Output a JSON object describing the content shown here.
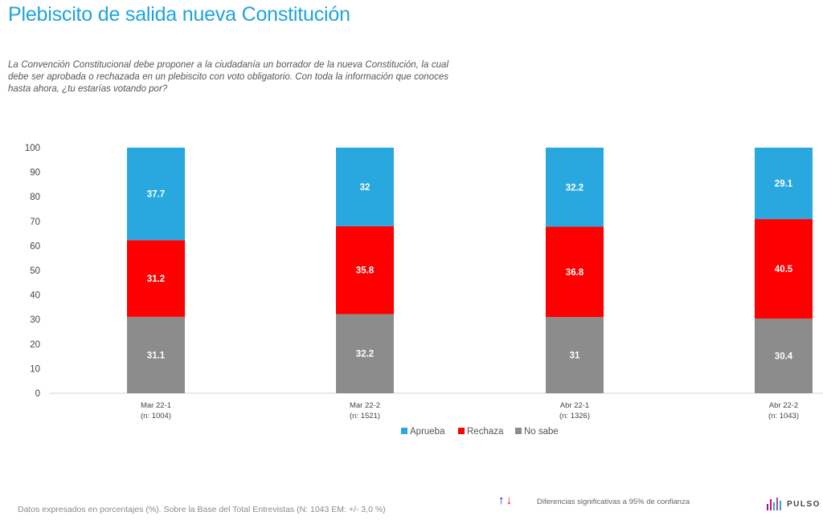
{
  "header": {
    "title": "Plebiscito de salida nueva Constitución",
    "question": "La Convención Constitucional debe proponer a la ciudadanía un borrador de la nueva Constitución, la cual debe ser aprobada o rechazada en un plebiscito con voto obligatorio. Con toda la información que conoces hasta ahora, ¿tu estarías votando por?"
  },
  "chart_data": {
    "type": "bar",
    "stacked": true,
    "title": "",
    "xlabel": "",
    "ylabel": "",
    "ylim": [
      0,
      100
    ],
    "yticks": [
      0,
      10,
      20,
      30,
      40,
      50,
      60,
      70,
      80,
      90,
      100
    ],
    "grid": false,
    "categories": [
      "Mar 22-1",
      "Mar 22-2",
      "Abr 22-1",
      "Abr 22-2"
    ],
    "sample_sizes": [
      "(n: 1004)",
      "(n: 1521)",
      "(n: 1326)",
      "(n: 1043)"
    ],
    "series": [
      {
        "name": "No sabe",
        "color": "#8c8c8c",
        "values": [
          31.1,
          32.2,
          31,
          30.4
        ]
      },
      {
        "name": "Rechaza",
        "color": "#ff0000",
        "values": [
          31.2,
          35.8,
          36.8,
          40.5
        ]
      },
      {
        "name": "Aprueba",
        "color": "#29a8e0",
        "values": [
          37.7,
          32,
          32.2,
          29.1
        ]
      }
    ],
    "legend": [
      "Aprueba",
      "Rechaza",
      "No sabe"
    ],
    "legend_position": "bottom-center"
  },
  "footer": {
    "note": "Datos expresados en porcentajes (%). Sobre la Base del Total Entrevistas (N: 1043  EM: +/- 3,0 %)",
    "arrow_up": "↑",
    "arrow_down": "↓",
    "significance": "Diferencias  significativas a 95% de confianza",
    "brand": "PULSO C",
    "brand_colors": [
      "#7b2a8c",
      "#e6007e",
      "#29a8e0",
      "#9b4fa0",
      "#29a8e0"
    ]
  }
}
